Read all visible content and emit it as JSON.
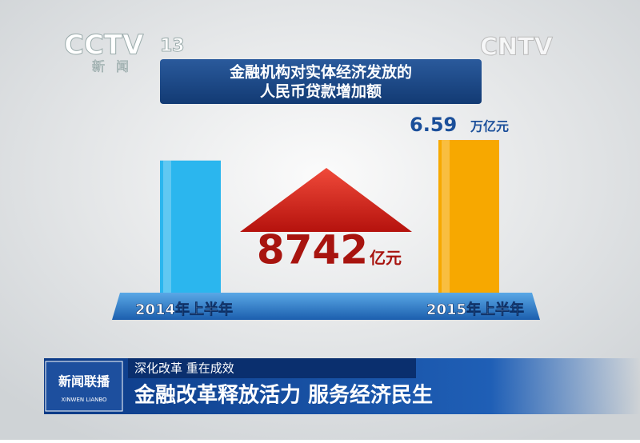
{
  "chart_data": {
    "type": "bar",
    "title_lines": [
      "金融机构对实体经济发放的",
      "人民币贷款增加额"
    ],
    "categories": [
      "2014年上半年",
      "2015年上半年"
    ],
    "values": [
      5.72,
      6.59
    ],
    "colors": [
      "#2bb6ee",
      "#f7a800"
    ],
    "value_unit": "万亿元",
    "annotation": {
      "value": 8742,
      "unit": "亿元"
    }
  },
  "broadcast": {
    "channel_logo": "CCTV",
    "channel_number": "13",
    "channel_subtitle": "新闻",
    "watermark": "CNTV",
    "program_logo": "新闻联播",
    "program_logo_pinyin": "XINWEN LIANBO",
    "kicker": "深化改革 重在成效",
    "headline": "金融改革释放活力 服务经济民生"
  }
}
